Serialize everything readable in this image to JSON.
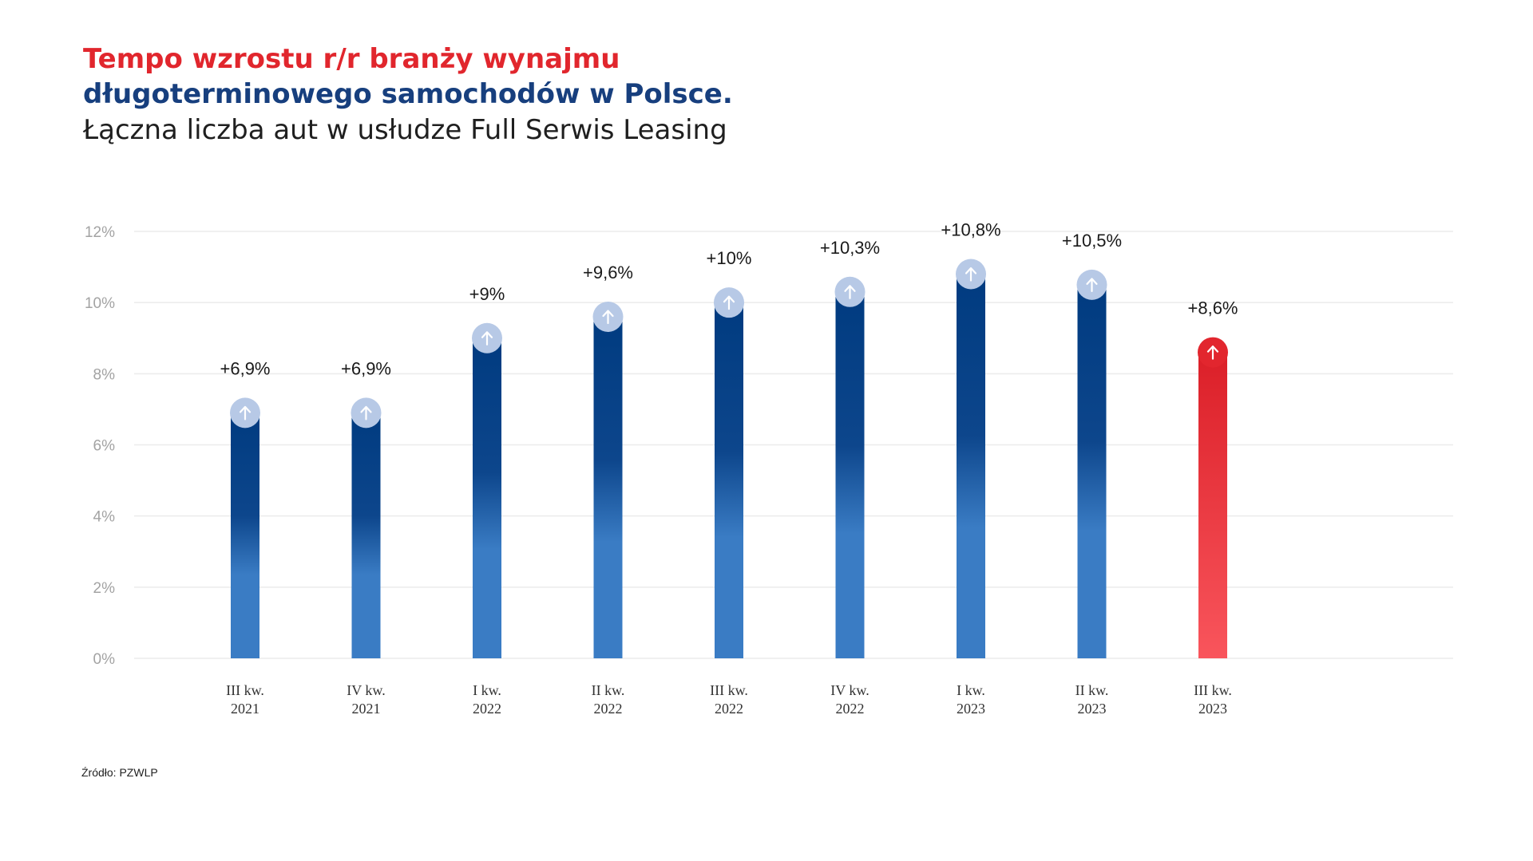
{
  "title_line1": "Tempo wzrostu r/r branży wynajmu",
  "title_line2": "długoterminowego samochodów w Polsce.",
  "subtitle": "Łączna liczba aut w usłudze Full Serwis Leasing",
  "source": "Źródło: PZWLP",
  "colors": {
    "title_red": "#e1262d",
    "title_blue": "#173f7e",
    "bar_dark_blue": "#003b80",
    "bar_light_blue": "#3a7cc4",
    "bar_red_top": "#db1f28",
    "bar_red_bottom": "#f9555c",
    "grid": "#ebebeb"
  },
  "chart_data": {
    "type": "bar",
    "categories": [
      [
        "III kw.",
        "2021"
      ],
      [
        "IV kw.",
        "2021"
      ],
      [
        "I kw.",
        "2022"
      ],
      [
        "II kw.",
        "2022"
      ],
      [
        "III kw.",
        "2022"
      ],
      [
        "IV kw.",
        "2022"
      ],
      [
        "I kw.",
        "2023"
      ],
      [
        "II kw.",
        "2023"
      ],
      [
        "III kw.",
        "2023"
      ]
    ],
    "values": [
      6.9,
      6.9,
      9.0,
      9.6,
      10.0,
      10.3,
      10.8,
      10.5,
      8.6
    ],
    "data_labels": [
      "+6,9%",
      "+6,9%",
      "+9%",
      "+9,6%",
      "+10%",
      "+10,3%",
      "+10,8%",
      "+10,5%",
      "+8,6%"
    ],
    "highlighted_index": 8,
    "marker_icon": "arrow-up-icon",
    "yticks": [
      0,
      2,
      4,
      6,
      8,
      10,
      12
    ],
    "ytick_labels": [
      "0%",
      "2%",
      "4%",
      "6%",
      "8%",
      "10%",
      "12%"
    ],
    "ylim": [
      0,
      12
    ],
    "grid": true,
    "legend": false
  }
}
